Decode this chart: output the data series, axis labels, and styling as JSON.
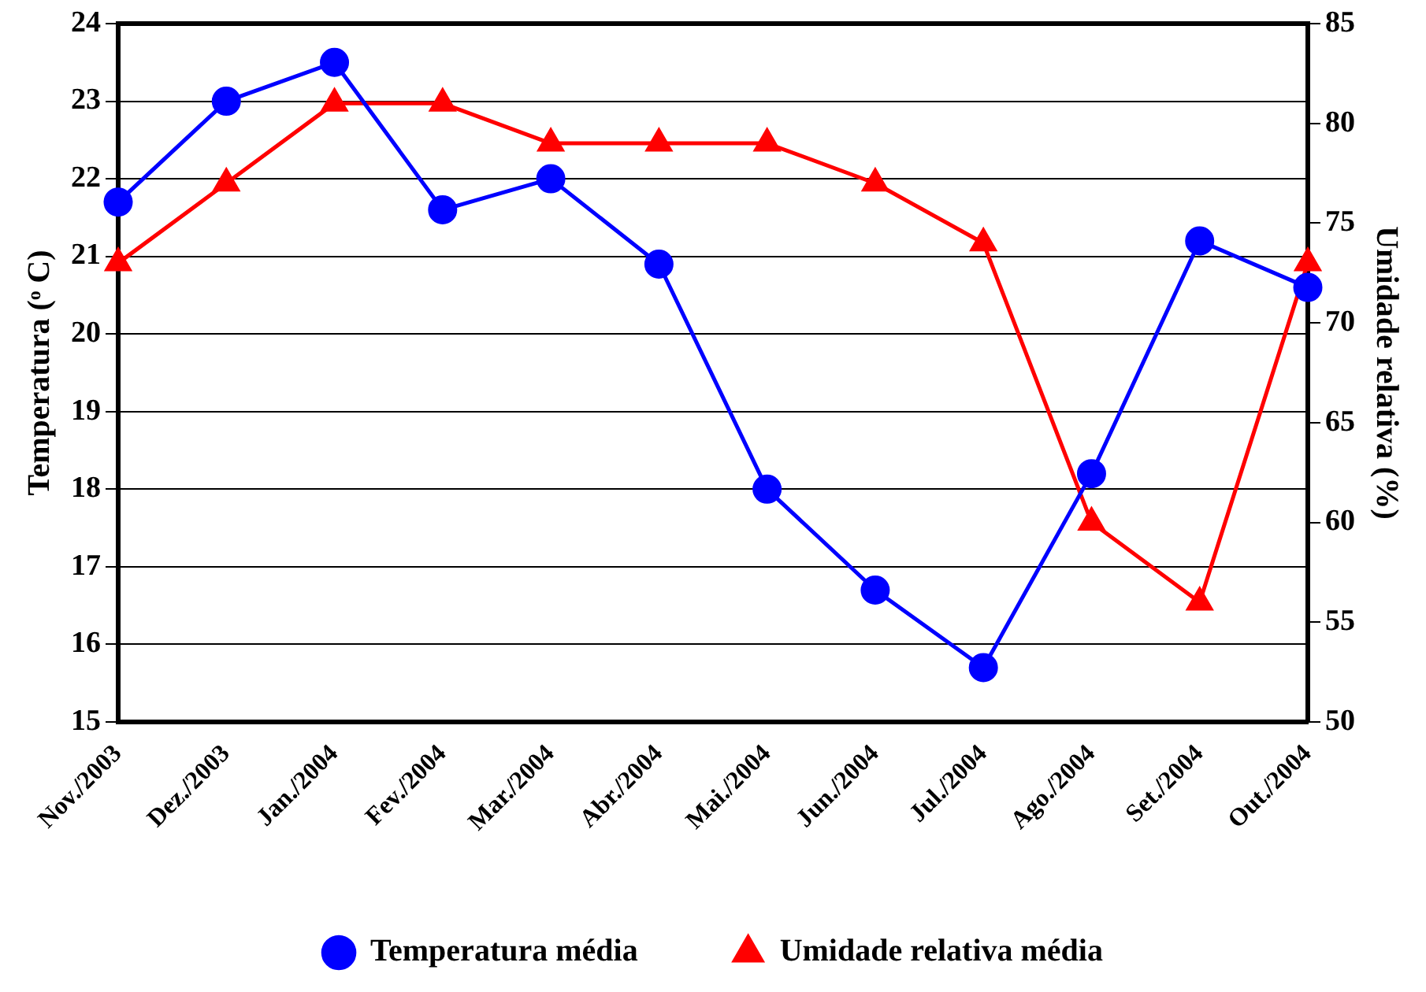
{
  "chart_data": {
    "type": "line",
    "ylabel": "Temperatura (ᵒ C)",
    "y2label": "Umidade relativa (%)",
    "categories": [
      "Nov./2003",
      "Dez./2003",
      "Jan./2004",
      "Fev./2004",
      "Mar./2004",
      "Abr./2004",
      "Mai./2004",
      "Jun./2004",
      "Jul./2004",
      "Ago./2004",
      "Set./2004",
      "Out./2004"
    ],
    "series": [
      {
        "name": "Temperatura média",
        "color": "#0000ff",
        "marker": "circle",
        "values": [
          21.7,
          23.0,
          23.5,
          21.6,
          22.0,
          20.9,
          18.0,
          16.7,
          15.7,
          18.2,
          21.2,
          20.6
        ]
      },
      {
        "name": "Umidade relativa média",
        "color": "#ff0000",
        "marker": "triangle",
        "axis": "y2",
        "values": [
          73,
          77,
          81,
          81,
          79,
          79,
          79,
          77,
          74,
          60,
          56,
          73
        ]
      }
    ],
    "ylim": [
      15,
      24
    ],
    "yticks": [
      15,
      16,
      17,
      18,
      19,
      20,
      21,
      22,
      23,
      24
    ],
    "y2lim": [
      50,
      85
    ],
    "y2ticks": [
      50,
      55,
      60,
      65,
      70,
      75,
      80,
      85
    ],
    "grid": "y",
    "legend": "bottom"
  }
}
